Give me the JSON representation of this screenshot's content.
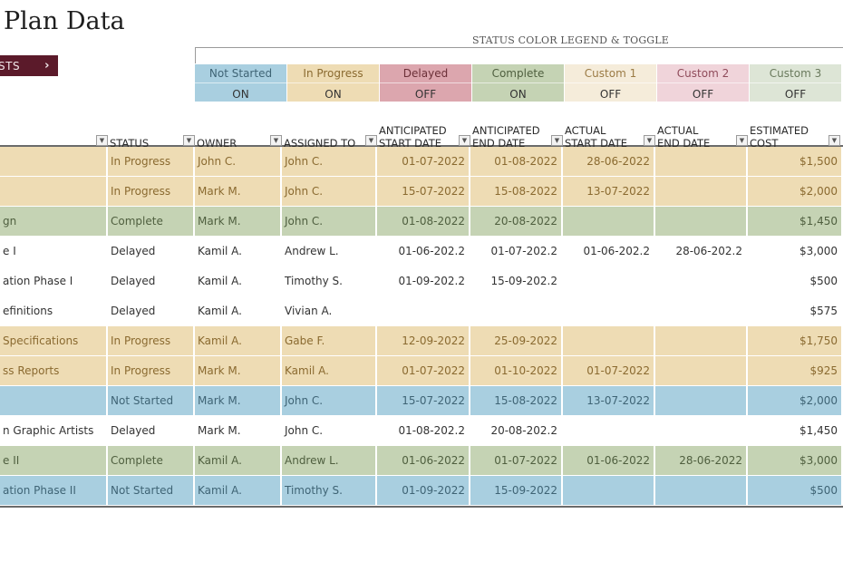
{
  "page": {
    "title": "Plan Data"
  },
  "nav_button": {
    "label": "STS",
    "icon": "chevron-right-icon",
    "color": "#5b1a2a"
  },
  "legend": {
    "title": "STATUS COLOR LEGEND & TOGGLE",
    "items": [
      {
        "name": "Not Started",
        "state": "ON",
        "bg": "#a9cfe0",
        "fg": "#3f6475",
        "tog_bg": "#a9cfe0"
      },
      {
        "name": "In Progress",
        "state": "ON",
        "bg": "#eedcb4",
        "fg": "#8a6a30",
        "tog_bg": "#eedcb4"
      },
      {
        "name": "Delayed",
        "state": "OFF",
        "bg": "#dca6ae",
        "fg": "#6b3038",
        "tog_bg": "#dca6ae"
      },
      {
        "name": "Complete",
        "state": "ON",
        "bg": "#c5d3b4",
        "fg": "#4f5f3f",
        "tog_bg": "#c5d3b4"
      },
      {
        "name": "Custom 1",
        "state": "OFF",
        "bg": "#f5ecda",
        "fg": "#9b7b45",
        "tog_bg": "#f5ecda"
      },
      {
        "name": "Custom 2",
        "state": "OFF",
        "bg": "#f0d4da",
        "fg": "#8f4b5a",
        "tog_bg": "#f0d4da"
      },
      {
        "name": "Custom 3",
        "state": "OFF",
        "bg": "#dde5d6",
        "fg": "#6a7a5d",
        "tog_bg": "#dde5d6"
      }
    ]
  },
  "table": {
    "columns": [
      {
        "key": "task",
        "label": ""
      },
      {
        "key": "status",
        "label": "STATUS"
      },
      {
        "key": "owner",
        "label": "OWNER"
      },
      {
        "key": "assigned",
        "label": "ASSIGNED TO"
      },
      {
        "key": "ant_start",
        "label_l1": "ANTICIPATED",
        "label_l2": "START DATE"
      },
      {
        "key": "ant_end",
        "label_l1": "ANTICIPATED",
        "label_l2": "END DATE"
      },
      {
        "key": "act_start",
        "label_l1": "ACTUAL",
        "label_l2": "START DATE"
      },
      {
        "key": "act_end",
        "label_l1": "ACTUAL",
        "label_l2": "END DATE"
      },
      {
        "key": "cost",
        "label_l1": "ESTIMATED",
        "label_l2": "COST"
      }
    ],
    "rows": [
      {
        "task": "",
        "status": "In Progress",
        "owner": "John C.",
        "assigned": "John C.",
        "ant_start": "01-07-2022",
        "ant_end": "01-08-2022",
        "act_start": "28-06-2022",
        "act_end": "",
        "cost": "$1,500",
        "style": "inprogress"
      },
      {
        "task": "",
        "status": "In Progress",
        "owner": "Mark M.",
        "assigned": "John C.",
        "ant_start": "15-07-2022",
        "ant_end": "15-08-2022",
        "act_start": "13-07-2022",
        "act_end": "",
        "cost": "$2,000",
        "style": "inprogress"
      },
      {
        "task": "gn",
        "status": "Complete",
        "owner": "Mark M.",
        "assigned": "John C.",
        "ant_start": "01-08-2022",
        "ant_end": "20-08-2022",
        "act_start": "",
        "act_end": "",
        "cost": "$1,450",
        "style": "complete"
      },
      {
        "task": "e I",
        "status": "Delayed",
        "owner": "Kamil A.",
        "assigned": "Andrew L.",
        "ant_start": "01-06-202.2",
        "ant_end": "01-07-202.2",
        "act_start": "01-06-202.2",
        "act_end": "28-06-202.2",
        "cost": "$3,000",
        "style": "plain"
      },
      {
        "task": "ation Phase I",
        "status": "Delayed",
        "owner": "Kamil A.",
        "assigned": "Timothy S.",
        "ant_start": "01-09-202.2",
        "ant_end": "15-09-202.2",
        "act_start": "",
        "act_end": "",
        "cost": "$500",
        "style": "plain"
      },
      {
        "task": "efinitions",
        "status": "Delayed",
        "owner": "Kamil A.",
        "assigned": "Vivian A.",
        "ant_start": "",
        "ant_end": "",
        "act_start": "",
        "act_end": "",
        "cost": "$575",
        "style": "plain"
      },
      {
        "task": " Specifications",
        "status": "In Progress",
        "owner": "Kamil A.",
        "assigned": "Gabe F.",
        "ant_start": "12-09-2022",
        "ant_end": "25-09-2022",
        "act_start": "",
        "act_end": "",
        "cost": "$1,750",
        "style": "inprogress"
      },
      {
        "task": "ss Reports",
        "status": "In Progress",
        "owner": "Mark M.",
        "assigned": "Kamil A.",
        "ant_start": "01-07-2022",
        "ant_end": "01-10-2022",
        "act_start": "01-07-2022",
        "act_end": "",
        "cost": "$925",
        "style": "inprogress"
      },
      {
        "task": "",
        "status": "Not Started",
        "owner": "Mark M.",
        "assigned": "John C.",
        "ant_start": "15-07-2022",
        "ant_end": "15-08-2022",
        "act_start": "13-07-2022",
        "act_end": "",
        "cost": "$2,000",
        "style": "notstarted"
      },
      {
        "task": "n Graphic Artists",
        "status": "Delayed",
        "owner": "Mark M.",
        "assigned": "John C.",
        "ant_start": "01-08-202.2",
        "ant_end": "20-08-202.2",
        "act_start": "",
        "act_end": "",
        "cost": "$1,450",
        "style": "plain"
      },
      {
        "task": "e II",
        "status": "Complete",
        "owner": "Kamil A.",
        "assigned": "Andrew L.",
        "ant_start": "01-06-2022",
        "ant_end": "01-07-2022",
        "act_start": "01-06-2022",
        "act_end": "28-06-2022",
        "cost": "$3,000",
        "style": "complete"
      },
      {
        "task": "ation Phase II",
        "status": "Not Started",
        "owner": "Kamil A.",
        "assigned": "Timothy S.",
        "ant_start": "01-09-2022",
        "ant_end": "15-09-2022",
        "act_start": "",
        "act_end": "",
        "cost": "$500",
        "style": "notstarted"
      }
    ]
  },
  "row_styles": {
    "inprogress": {
      "bg": "#eedcb4",
      "fg": "#8a6a30"
    },
    "complete": {
      "bg": "#c5d3b4",
      "fg": "#4f5f3f"
    },
    "notstarted": {
      "bg": "#a9cfe0",
      "fg": "#3f6475"
    },
    "plain": {
      "bg": "#ffffff",
      "fg": "#333333"
    }
  }
}
